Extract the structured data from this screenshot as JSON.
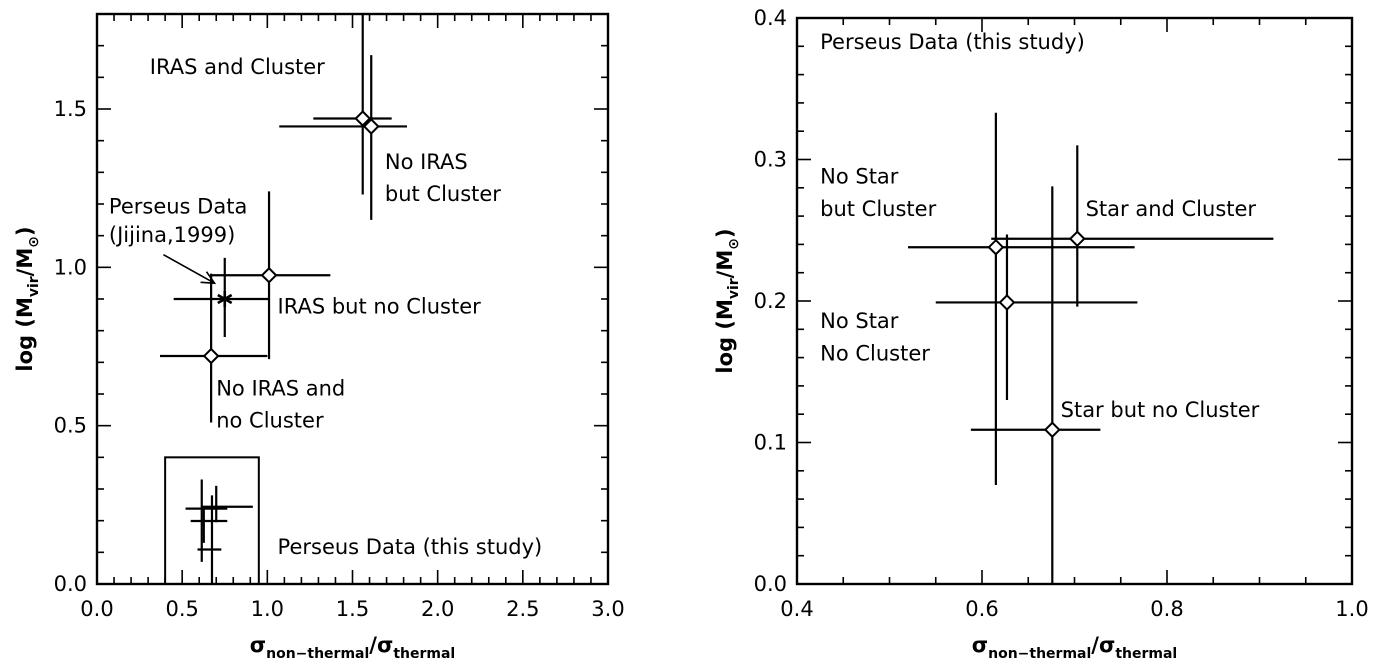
{
  "chart_data": [
    {
      "type": "scatter",
      "title": "",
      "xlim": [
        0.0,
        3.0
      ],
      "ylim": [
        0.0,
        1.8
      ],
      "xticks": [
        "0.0",
        "0.5",
        "1.0",
        "1.5",
        "2.0",
        "2.5",
        "3.0"
      ],
      "yticks": [
        "0.0",
        "0.5",
        "1.0",
        "1.5"
      ],
      "xlabel": {
        "main": "σ",
        "sub1": "non−thermal",
        "slash": "/σ",
        "sub2": "thermal"
      },
      "ylabel": {
        "pre": "log (M",
        "sub1": "vir",
        "mid": "/M",
        "sub2": "⊙",
        "post": ")"
      },
      "series": [
        {
          "marker": "diamond",
          "x": 0.67,
          "y": 0.72,
          "xerr": [
            0.37,
            1.0
          ],
          "yerr": [
            0.51,
            0.98
          ]
        },
        {
          "marker": "diamond",
          "x": 1.01,
          "y": 0.975,
          "xerr": [
            0.67,
            1.37
          ],
          "yerr": [
            0.71,
            1.24
          ]
        },
        {
          "marker": "diamond",
          "x": 1.56,
          "y": 1.47,
          "xerr": [
            1.27,
            1.73
          ],
          "yerr": [
            1.23,
            1.8
          ]
        },
        {
          "marker": "diamond",
          "x": 1.61,
          "y": 1.445,
          "xerr": [
            1.07,
            1.82
          ],
          "yerr": [
            1.15,
            1.67
          ]
        },
        {
          "marker": "star",
          "x": 0.75,
          "y": 0.9,
          "xerr": [
            0.45,
            1.01
          ],
          "yerr": [
            0.78,
            1.03
          ]
        },
        {
          "marker": "none",
          "x": 0.615,
          "y": 0.238,
          "xerr": [
            0.52,
            0.765
          ],
          "yerr": [
            0.07,
            0.33
          ]
        },
        {
          "marker": "none",
          "x": 0.7,
          "y": 0.244,
          "xerr": [
            0.61,
            0.915
          ],
          "yerr": [
            0.195,
            0.31
          ]
        },
        {
          "marker": "none",
          "x": 0.627,
          "y": 0.199,
          "xerr": [
            0.55,
            0.765
          ],
          "yerr": [
            0.13,
            0.245
          ]
        },
        {
          "marker": "none",
          "x": 0.675,
          "y": 0.109,
          "xerr": [
            0.59,
            0.73
          ],
          "yerr": [
            0.0,
            0.28
          ]
        }
      ],
      "zoom_box": {
        "x": [
          0.4,
          0.95
        ],
        "y": [
          0.0,
          0.4
        ]
      },
      "annotations": [
        {
          "text": "IRAS and Cluster",
          "x": 0.31,
          "y": 1.61
        },
        {
          "text": "No IRAS",
          "x": 1.69,
          "y": 1.31
        },
        {
          "text": "but Cluster",
          "x": 1.69,
          "y": 1.21
        },
        {
          "text": "Perseus Data",
          "x": 0.07,
          "y": 1.17
        },
        {
          "text": "(Jijina,1999)",
          "x": 0.07,
          "y": 1.08
        },
        {
          "text": "IRAS but no Cluster",
          "x": 1.06,
          "y": 0.855
        },
        {
          "text": "No IRAS and",
          "x": 0.7,
          "y": 0.595
        },
        {
          "text": "no Cluster",
          "x": 0.7,
          "y": 0.495
        },
        {
          "text": "Perseus Data (this study)",
          "x": 1.06,
          "y": 0.095
        }
      ],
      "arrow": {
        "from": [
          0.39,
          1.04
        ],
        "to": [
          0.69,
          0.95
        ]
      }
    },
    {
      "type": "scatter",
      "title": "",
      "xlim": [
        0.4,
        1.0
      ],
      "ylim": [
        0.0,
        0.4
      ],
      "xticks": [
        "0.4",
        "0.6",
        "0.8",
        "1.0"
      ],
      "yticks": [
        "0.0",
        "0.1",
        "0.2",
        "0.3",
        "0.4"
      ],
      "xlabel": {
        "main": "σ",
        "sub1": "non−thermal",
        "slash": "/σ",
        "sub2": "thermal"
      },
      "ylabel": {
        "pre": "log (M",
        "sub1": "vir",
        "mid": "/M",
        "sub2": "⊙",
        "post": ")"
      },
      "series": [
        {
          "marker": "diamond",
          "x": 0.615,
          "y": 0.238,
          "xerr": [
            0.52,
            0.765
          ],
          "yerr": [
            0.07,
            0.333
          ]
        },
        {
          "marker": "diamond",
          "x": 0.703,
          "y": 0.244,
          "xerr": [
            0.61,
            0.915
          ],
          "yerr": [
            0.196,
            0.31
          ]
        },
        {
          "marker": "diamond",
          "x": 0.627,
          "y": 0.199,
          "xerr": [
            0.55,
            0.768
          ],
          "yerr": [
            0.13,
            0.247
          ]
        },
        {
          "marker": "diamond",
          "x": 0.676,
          "y": 0.109,
          "xerr": [
            0.588,
            0.728
          ],
          "yerr": [
            0.0,
            0.281
          ]
        }
      ],
      "annotations": [
        {
          "text": "Perseus Data (this study)",
          "x": 0.425,
          "y": 0.378
        },
        {
          "text": "No Star",
          "x": 0.425,
          "y": 0.283
        },
        {
          "text": "but Cluster",
          "x": 0.425,
          "y": 0.26
        },
        {
          "text": "Star and Cluster",
          "x": 0.712,
          "y": 0.26
        },
        {
          "text": "No Star",
          "x": 0.425,
          "y": 0.181
        },
        {
          "text": "No Cluster",
          "x": 0.425,
          "y": 0.158
        },
        {
          "text": "Star but no Cluster",
          "x": 0.685,
          "y": 0.118
        }
      ]
    }
  ]
}
